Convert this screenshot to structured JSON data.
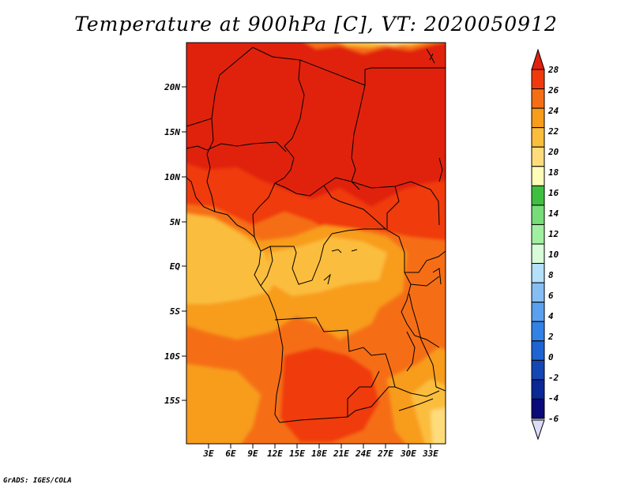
{
  "title": "Temperature at 900hPa [C], VT: 2020050912",
  "credit": "GrADS: IGES/COLA",
  "map": {
    "lat_labels": [
      "20N",
      "15N",
      "10N",
      "5N",
      "EQ",
      "5S",
      "10S",
      "15S"
    ],
    "lon_labels": [
      "3E",
      "6E",
      "9E",
      "12E",
      "15E",
      "18E",
      "21E",
      "24E",
      "27E",
      "30E",
      "33E"
    ]
  },
  "colorbar": {
    "levels": [
      "28",
      "26",
      "24",
      "22",
      "20",
      "18",
      "16",
      "14",
      "12",
      "10",
      "8",
      "6",
      "4",
      "2",
      "0",
      "-2",
      "-4",
      "-6"
    ],
    "colors": {
      "above_28": "#e02010",
      "26_28": "#f03a0e",
      "24_26": "#f56e16",
      "22_24": "#f89c1c",
      "20_22": "#fbbd3c",
      "18_20": "#fedc7c",
      "16_18": "#fefcb8",
      "14_16": "#3fbf3f",
      "12_14": "#78dc78",
      "10_12": "#a0f0a0",
      "8_10": "#d8fbd8",
      "6_8": "#b4e0fb",
      "4_6": "#86bef4",
      "2_4": "#5aa0ee",
      "0_2": "#3282e6",
      "m2_0": "#1e64d2",
      "m4_m2": "#1446b4",
      "m6_m4": "#0a2896",
      "below_m6": "#0a0a78",
      "under_triangle": "#dcdcf8"
    }
  }
}
